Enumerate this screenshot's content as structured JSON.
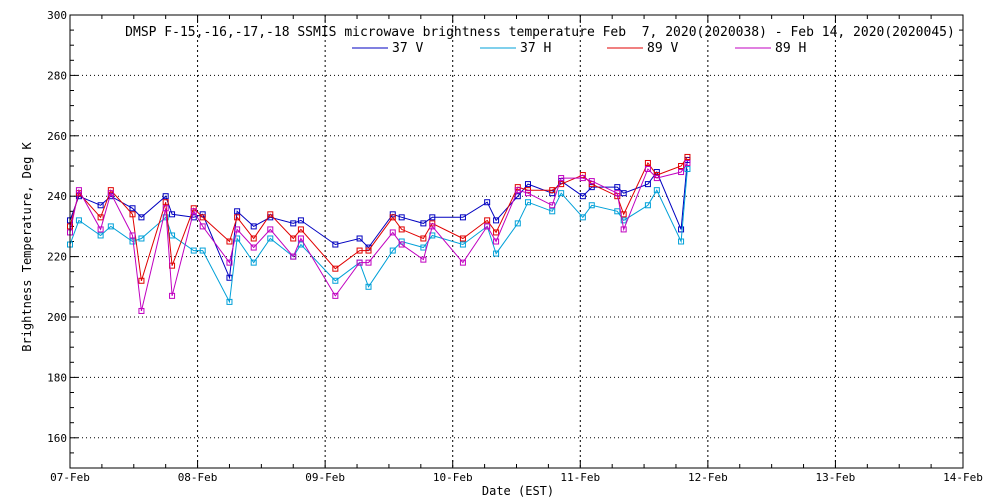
{
  "chart_data": {
    "type": "line",
    "title": "DMSP F-15,-16,-17,-18 SSMIS microwave brightness temperature Feb  7, 2020(2020038) - Feb 14, 2020(2020045)",
    "xlabel": "Date (EST)",
    "ylabel": "Brightness Temperature, Deg K",
    "xlim": [
      0,
      7
    ],
    "ylim": [
      150,
      300
    ],
    "x_ticks": [
      0,
      1,
      2,
      3,
      4,
      5,
      6,
      7
    ],
    "x_tick_labels": [
      "07-Feb",
      "08-Feb",
      "09-Feb",
      "10-Feb",
      "11-Feb",
      "12-Feb",
      "13-Feb",
      "14-Feb"
    ],
    "y_ticks": [
      160,
      180,
      200,
      220,
      240,
      260,
      280,
      300
    ],
    "y_tick_labels": [
      "160",
      "180",
      "200",
      "220",
      "240",
      "260",
      "280",
      "300"
    ],
    "grid": true,
    "legend_position": "top",
    "x_reference": "day offset from 07-Feb 00:00 EST",
    "series": [
      {
        "name": "37 V",
        "color": "#0000c0",
        "points": [
          [
            0.0,
            232
          ],
          [
            0.07,
            240
          ],
          [
            0.24,
            237
          ],
          [
            0.32,
            240
          ],
          [
            0.49,
            236
          ],
          [
            0.56,
            233
          ],
          [
            0.75,
            240
          ],
          [
            0.8,
            234
          ],
          [
            0.97,
            233
          ],
          [
            1.04,
            234
          ],
          [
            1.25,
            213
          ],
          [
            1.31,
            235
          ],
          [
            1.44,
            230
          ],
          [
            1.57,
            233
          ],
          [
            1.75,
            231
          ],
          [
            1.81,
            232
          ],
          [
            2.08,
            224
          ],
          [
            2.27,
            226
          ],
          [
            2.34,
            223
          ],
          [
            2.53,
            234
          ],
          [
            2.6,
            233
          ],
          [
            2.77,
            231
          ],
          [
            2.84,
            233
          ],
          [
            3.08,
            233
          ],
          [
            3.27,
            238
          ],
          [
            3.34,
            232
          ],
          [
            3.51,
            240
          ],
          [
            3.59,
            244
          ],
          [
            3.78,
            241
          ],
          [
            3.85,
            245
          ],
          [
            4.02,
            240
          ],
          [
            4.09,
            243
          ],
          [
            4.29,
            243
          ],
          [
            4.34,
            241
          ],
          [
            4.53,
            244
          ],
          [
            4.6,
            248
          ],
          [
            4.79,
            229
          ],
          [
            4.84,
            252
          ]
        ]
      },
      {
        "name": "37 H",
        "color": "#00a0d8",
        "points": [
          [
            0.0,
            224
          ],
          [
            0.07,
            232
          ],
          [
            0.24,
            227
          ],
          [
            0.32,
            230
          ],
          [
            0.49,
            225
          ],
          [
            0.56,
            226
          ],
          [
            0.75,
            233
          ],
          [
            0.8,
            227
          ],
          [
            0.97,
            222
          ],
          [
            1.04,
            222
          ],
          [
            1.25,
            205
          ],
          [
            1.31,
            226
          ],
          [
            1.44,
            218
          ],
          [
            1.57,
            226
          ],
          [
            1.75,
            220
          ],
          [
            1.81,
            224
          ],
          [
            2.08,
            212
          ],
          [
            2.27,
            218
          ],
          [
            2.34,
            210
          ],
          [
            2.53,
            222
          ],
          [
            2.6,
            225
          ],
          [
            2.77,
            223
          ],
          [
            2.84,
            227
          ],
          [
            3.08,
            224
          ],
          [
            3.27,
            230
          ],
          [
            3.34,
            221
          ],
          [
            3.51,
            231
          ],
          [
            3.59,
            238
          ],
          [
            3.78,
            235
          ],
          [
            3.85,
            241
          ],
          [
            4.02,
            233
          ],
          [
            4.09,
            237
          ],
          [
            4.29,
            235
          ],
          [
            4.34,
            232
          ],
          [
            4.53,
            237
          ],
          [
            4.6,
            242
          ],
          [
            4.79,
            225
          ],
          [
            4.84,
            249
          ]
        ]
      },
      {
        "name": "89 V",
        "color": "#e00000",
        "points": [
          [
            0.0,
            230
          ],
          [
            0.07,
            241
          ],
          [
            0.24,
            233
          ],
          [
            0.32,
            242
          ],
          [
            0.49,
            234
          ],
          [
            0.56,
            212
          ],
          [
            0.75,
            238
          ],
          [
            0.8,
            217
          ],
          [
            0.97,
            236
          ],
          [
            1.04,
            233
          ],
          [
            1.25,
            225
          ],
          [
            1.31,
            233
          ],
          [
            1.44,
            226
          ],
          [
            1.57,
            234
          ],
          [
            1.75,
            226
          ],
          [
            1.81,
            229
          ],
          [
            2.08,
            216
          ],
          [
            2.27,
            222
          ],
          [
            2.34,
            222
          ],
          [
            2.53,
            233
          ],
          [
            2.6,
            229
          ],
          [
            2.77,
            226
          ],
          [
            2.84,
            231
          ],
          [
            3.08,
            226
          ],
          [
            3.27,
            232
          ],
          [
            3.34,
            228
          ],
          [
            3.51,
            243
          ],
          [
            3.59,
            242
          ],
          [
            3.78,
            242
          ],
          [
            3.85,
            244
          ],
          [
            4.02,
            247
          ],
          [
            4.09,
            244
          ],
          [
            4.29,
            240
          ],
          [
            4.34,
            234
          ],
          [
            4.53,
            251
          ],
          [
            4.6,
            247
          ],
          [
            4.79,
            250
          ],
          [
            4.84,
            253
          ]
        ]
      },
      {
        "name": "89 H",
        "color": "#c000c0",
        "points": [
          [
            0.0,
            228
          ],
          [
            0.07,
            242
          ],
          [
            0.24,
            229
          ],
          [
            0.32,
            241
          ],
          [
            0.49,
            227
          ],
          [
            0.56,
            202
          ],
          [
            0.75,
            236
          ],
          [
            0.8,
            207
          ],
          [
            0.97,
            235
          ],
          [
            1.04,
            230
          ],
          [
            1.25,
            218
          ],
          [
            1.31,
            229
          ],
          [
            1.44,
            223
          ],
          [
            1.57,
            229
          ],
          [
            1.75,
            220
          ],
          [
            1.81,
            226
          ],
          [
            2.08,
            207
          ],
          [
            2.27,
            218
          ],
          [
            2.34,
            218
          ],
          [
            2.53,
            228
          ],
          [
            2.6,
            224
          ],
          [
            2.77,
            219
          ],
          [
            2.84,
            230
          ],
          [
            3.08,
            218
          ],
          [
            3.27,
            230
          ],
          [
            3.34,
            225
          ],
          [
            3.51,
            242
          ],
          [
            3.59,
            241
          ],
          [
            3.78,
            237
          ],
          [
            3.85,
            246
          ],
          [
            4.02,
            246
          ],
          [
            4.09,
            245
          ],
          [
            4.29,
            241
          ],
          [
            4.34,
            229
          ],
          [
            4.53,
            249
          ],
          [
            4.6,
            246
          ],
          [
            4.79,
            248
          ],
          [
            4.84,
            251
          ]
        ]
      }
    ]
  }
}
